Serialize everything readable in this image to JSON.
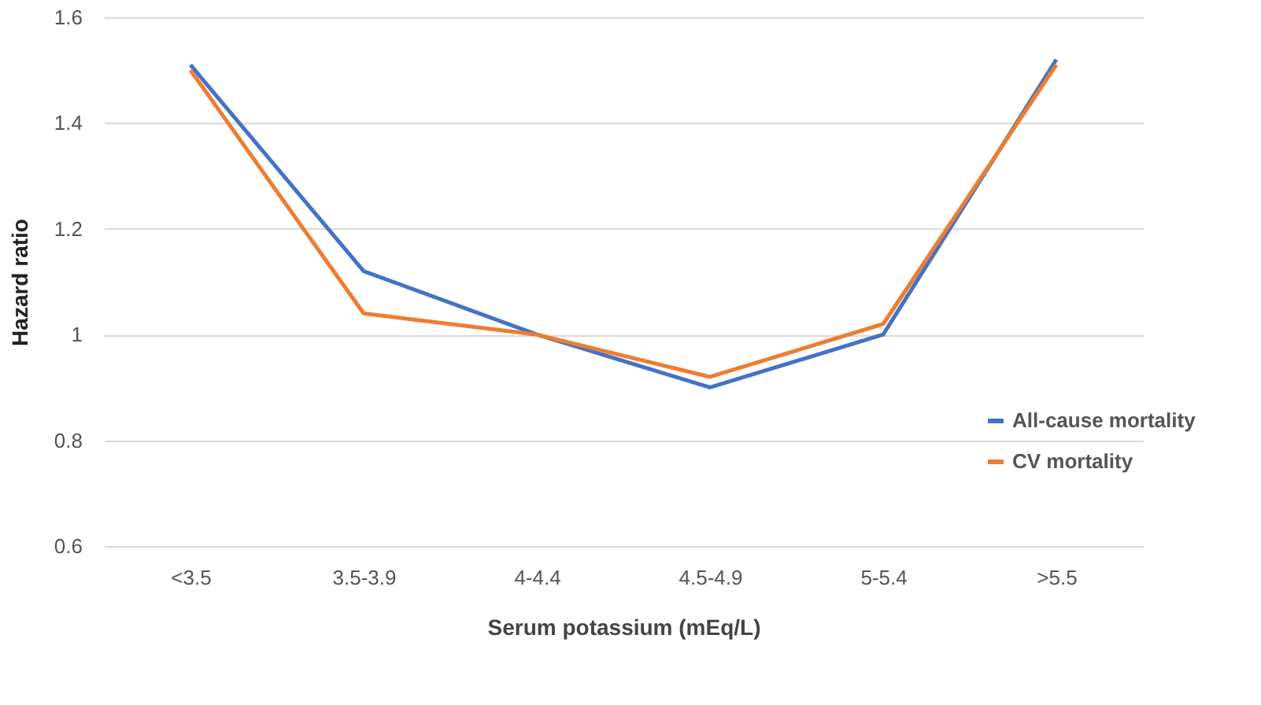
{
  "chart_data": {
    "type": "line",
    "xlabel": "Serum potassium (mEq/L)",
    "ylabel": "Hazard ratio",
    "categories": [
      "<3.5",
      "3.5-3.9",
      "4-4.4",
      "4.5-4.9",
      "5-5.4",
      ">5.5"
    ],
    "series": [
      {
        "name": "All-cause mortality",
        "color": "#4472c4",
        "values": [
          1.51,
          1.12,
          1.0,
          0.9,
          1.0,
          1.52
        ]
      },
      {
        "name": "CV mortality",
        "color": "#ed7d31",
        "values": [
          1.5,
          1.04,
          1.0,
          0.92,
          1.02,
          1.51
        ]
      }
    ],
    "ylim": [
      0.6,
      1.6
    ],
    "yticks": [
      0.6,
      0.8,
      1,
      1.2,
      1.4,
      1.6
    ],
    "grid": "y",
    "legend": "right",
    "marker": "none",
    "line_style": "solid"
  }
}
